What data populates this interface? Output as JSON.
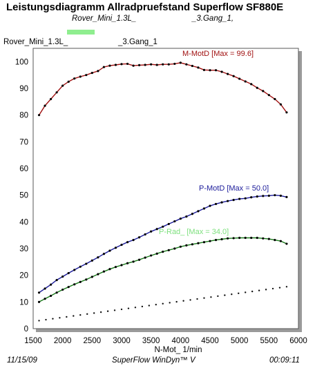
{
  "header": {
    "title": "Leistungsdiagramm Allradpruefstand Superflow SF880E",
    "sub_left": "Rover_Mini_1.3L_",
    "sub_right": "_3.Gang_1,",
    "run_left": "Rover_Mini_1.3L_",
    "run_right": "_3.Gang_1",
    "legend_color": "#8fee8f"
  },
  "footer": {
    "date": "11/15/09",
    "software": "SuperFlow WinDyn™ V",
    "time": "00:09:11"
  },
  "chart_data": {
    "type": "line",
    "xlabel": "N-Mot_ 1/min",
    "ylabel": "",
    "xlim": [
      1500,
      6000
    ],
    "ylim": [
      0,
      105
    ],
    "xticks": [
      1500,
      2000,
      2500,
      3000,
      3500,
      4000,
      4500,
      5000,
      5500,
      6000
    ],
    "yticks": [
      0,
      10,
      20,
      30,
      40,
      50,
      60,
      70,
      80,
      90,
      100
    ],
    "grid": true,
    "series": [
      {
        "name": "M-MotD [Max = 99.6]",
        "color": "#a01010",
        "x": [
          1600,
          1700,
          1800,
          1900,
          2000,
          2100,
          2200,
          2300,
          2400,
          2500,
          2600,
          2700,
          2800,
          2900,
          3000,
          3100,
          3200,
          3300,
          3400,
          3500,
          3600,
          3700,
          3800,
          3900,
          4000,
          4100,
          4200,
          4300,
          4400,
          4500,
          4600,
          4700,
          4800,
          4900,
          5000,
          5100,
          5200,
          5300,
          5400,
          5500,
          5600,
          5700,
          5800
        ],
        "y": [
          80,
          83.5,
          86,
          88.5,
          91,
          92.5,
          93.7,
          94.4,
          95,
          95.8,
          96.5,
          98,
          98.5,
          98.8,
          99.1,
          99.2,
          98.5,
          98.7,
          98.8,
          99,
          98.8,
          99,
          99,
          99.2,
          99.6,
          99,
          98.4,
          97.8,
          96.9,
          96.8,
          96.8,
          96.2,
          95.4,
          94.6,
          93.6,
          92.6,
          91.6,
          90.2,
          89,
          87.5,
          86,
          84,
          81
        ]
      },
      {
        "name": "P-MotD [Max = 50.0]",
        "color": "#1a1a9a",
        "x": [
          1600,
          1700,
          1800,
          1900,
          2000,
          2100,
          2200,
          2300,
          2400,
          2500,
          2600,
          2700,
          2800,
          2900,
          3000,
          3100,
          3200,
          3300,
          3400,
          3500,
          3600,
          3700,
          3800,
          3900,
          4000,
          4100,
          4200,
          4300,
          4400,
          4500,
          4600,
          4700,
          4800,
          4900,
          5000,
          5100,
          5200,
          5300,
          5400,
          5500,
          5600,
          5700,
          5800
        ],
        "y": [
          13.5,
          15,
          16.5,
          18.2,
          19.5,
          20.8,
          22,
          23.2,
          24.3,
          25.5,
          26.7,
          28,
          29.2,
          30.3,
          31.4,
          32.4,
          33.2,
          34.2,
          35.3,
          36.4,
          37.3,
          38.2,
          39.2,
          40.2,
          41.2,
          42,
          43,
          44,
          45,
          46,
          46.7,
          47.3,
          47.8,
          48.2,
          48.6,
          48.8,
          49.2,
          49.5,
          49.7,
          49.8,
          50,
          49.8,
          49.3
        ]
      },
      {
        "name": "P-Rad_ [Max = 34.0]",
        "color": "#1a7a1a",
        "x": [
          1600,
          1700,
          1800,
          1900,
          2000,
          2100,
          2200,
          2300,
          2400,
          2500,
          2600,
          2700,
          2800,
          2900,
          3000,
          3100,
          3200,
          3300,
          3400,
          3500,
          3600,
          3700,
          3800,
          3900,
          4000,
          4100,
          4200,
          4300,
          4400,
          4500,
          4600,
          4700,
          4800,
          4900,
          5000,
          5100,
          5200,
          5300,
          5400,
          5500,
          5600,
          5700,
          5800
        ],
        "y": [
          10,
          11.2,
          12.3,
          13.5,
          14.6,
          15.6,
          16.6,
          17.5,
          18.4,
          19.4,
          20.4,
          21.4,
          22.3,
          23.1,
          23.8,
          24.5,
          25.1,
          25.8,
          26.6,
          27.4,
          28.1,
          28.8,
          29.4,
          30,
          30.7,
          31.2,
          31.6,
          32,
          32.4,
          32.8,
          33.2,
          33.5,
          33.8,
          33.9,
          34,
          34,
          34,
          34,
          33.8,
          33.6,
          33.2,
          32.8,
          31.8
        ]
      },
      {
        "name": "",
        "color": "#111111",
        "dotted": true,
        "x": [
          1600,
          5800
        ],
        "y": [
          3,
          15.7
        ]
      }
    ]
  }
}
